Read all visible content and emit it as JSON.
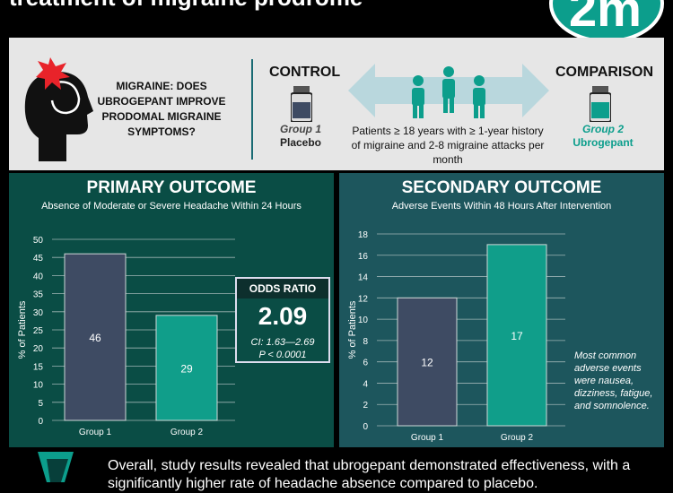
{
  "title": "treatment of migraine prodrome",
  "logo_text": "2m",
  "question": "MIGRAINE: DOES UBROGEPANT IMPROVE PRODOMAL MIGRAINE SYMPTOMS?",
  "control": {
    "title": "CONTROL",
    "group": "Group 1",
    "treatment": "Placebo"
  },
  "comparison": {
    "title": "COMPARISON",
    "group": "Group 2",
    "treatment": "Ubrogepant"
  },
  "population": "Patients ≥ 18 years with ≥ 1-year history of migraine and 2-8 migraine attacks per month",
  "primary": {
    "heading": "PRIMARY OUTCOME",
    "subheading": "Absence of Moderate or Severe Headache Within 24 Hours",
    "odds_ratio": {
      "label": "ODDS RATIO",
      "value": "2.09",
      "ci": "CI: 1.63—2.69",
      "p": "P < 0.0001"
    }
  },
  "secondary": {
    "heading": "SECONDARY OUTCOME",
    "subheading": "Adverse Events Within 48 Hours After Intervention",
    "note": "Most common adverse events were nausea, dizziness, fatigue, and somnolence."
  },
  "summary": "Overall, study results revealed that ubrogepant demonstrated effectiveness, with a significantly higher rate of headache absence compared to placebo.",
  "colors": {
    "group1": "#3e4b63",
    "group2": "#109e8a",
    "accent": "#0c9e8c"
  },
  "chart_data": [
    {
      "type": "bar",
      "categories": [
        "Group 1",
        "Group 2"
      ],
      "values": [
        46,
        29
      ],
      "ylabel": "% of Patients",
      "ylim": [
        0,
        50
      ],
      "yticks": [
        0,
        5,
        10,
        15,
        20,
        25,
        30,
        35,
        40,
        45,
        50
      ],
      "grid": true
    },
    {
      "type": "bar",
      "categories": [
        "Group 1",
        "Group 2"
      ],
      "values": [
        12,
        17
      ],
      "ylabel": "% of Patients",
      "ylim": [
        0,
        18
      ],
      "yticks": [
        0,
        2,
        4,
        6,
        8,
        10,
        12,
        14,
        16,
        18
      ],
      "grid": true
    }
  ]
}
